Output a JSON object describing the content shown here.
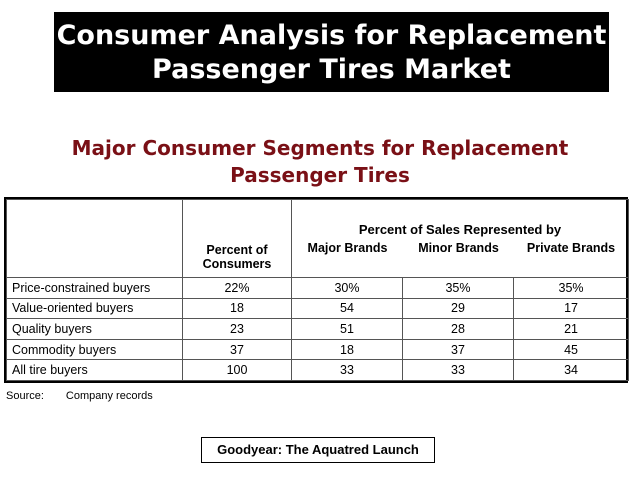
{
  "slide": {
    "title_line1": "Consumer Analysis for Replacement",
    "title_line2": "Passenger Tires Market",
    "subtitle_line1": "Major Consumer Segments for Replacement",
    "subtitle_line2": "Passenger Tires"
  },
  "table": {
    "group_header": "Percent of Sales Represented by",
    "col_percent_line1": "Percent of",
    "col_percent_line2": "Consumers",
    "col_major": "Major Brands",
    "col_minor": "Minor Brands",
    "col_private": "Private Brands",
    "rows": [
      {
        "segment": "Price-constrained buyers",
        "percent": "22%",
        "major": "30%",
        "minor": "35%",
        "private": "35%"
      },
      {
        "segment": "Value-oriented buyers",
        "percent": "18",
        "major": "54",
        "minor": "29",
        "private": "17"
      },
      {
        "segment": "Quality buyers",
        "percent": "23",
        "major": "51",
        "minor": "28",
        "private": "21"
      },
      {
        "segment": "Commodity buyers",
        "percent": "37",
        "major": "18",
        "minor": "37",
        "private": "45"
      },
      {
        "segment": "All tire buyers",
        "percent": "100",
        "major": "33",
        "minor": "33",
        "private": "34"
      }
    ]
  },
  "source": {
    "label": "Source:",
    "text": "Company records"
  },
  "caption": "Goodyear: The Aquatred Launch"
}
